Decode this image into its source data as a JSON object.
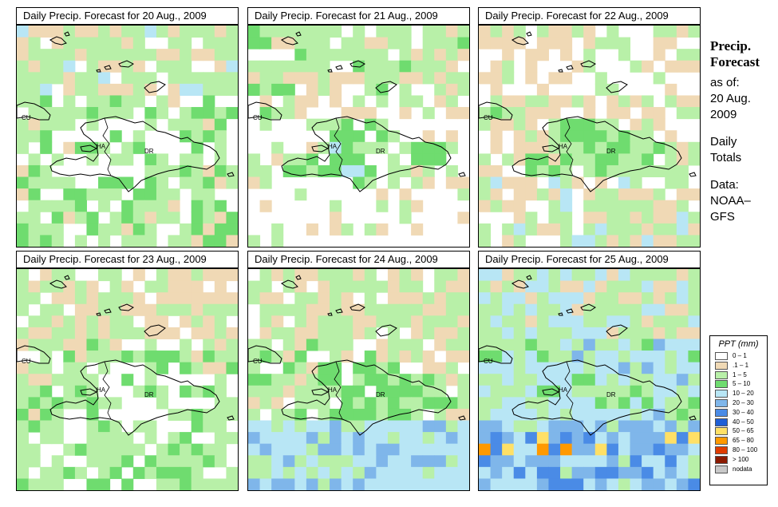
{
  "panels": [
    {
      "title": "Daily Precip. Forecast for  20 Aug., 2009",
      "seed": 11,
      "profile": "p0"
    },
    {
      "title": "Daily Precip. Forecast for  21 Aug., 2009",
      "seed": 23,
      "profile": "p1"
    },
    {
      "title": "Daily Precip. Forecast for  22 Aug., 2009",
      "seed": 37,
      "profile": "p2"
    },
    {
      "title": "Daily Precip. Forecast for  23 Aug., 2009",
      "seed": 41,
      "profile": "p3"
    },
    {
      "title": "Daily Precip. Forecast for  24 Aug., 2009",
      "seed": 53,
      "profile": "p4"
    },
    {
      "title": "Daily Precip. Forecast for  25 Aug., 2009",
      "seed": 67,
      "profile": "p5"
    }
  ],
  "map_labels": {
    "cuba": "CU",
    "haiti": "HA",
    "dominican_republic": "DR"
  },
  "side_info": {
    "title_line1": "Precip.",
    "title_line2": "Forecast",
    "asof_line1": "as of:",
    "asof_line2": "20 Aug.",
    "asof_line3": "2009",
    "totals_line1": "Daily",
    "totals_line2": "Totals",
    "data_line1": "Data:",
    "data_line2": "NOAA–",
    "data_line3": "GFS"
  },
  "legend": {
    "title": "PPT (mm)",
    "entries": [
      {
        "label": "0 – 1",
        "color": "#ffffff"
      },
      {
        "label": ".1 – 1",
        "color": "#f0d9b5"
      },
      {
        "label": "1 – 5",
        "color": "#b8f0a8"
      },
      {
        "label": "5 – 10",
        "color": "#6fdc6f"
      },
      {
        "label": "10 – 20",
        "color": "#b8e6f5"
      },
      {
        "label": "20 – 30",
        "color": "#7fb6ea"
      },
      {
        "label": "30 – 40",
        "color": "#4a8be6"
      },
      {
        "label": "40 – 50",
        "color": "#1f5fd6"
      },
      {
        "label": "50 – 65",
        "color": "#ffe066"
      },
      {
        "label": "65 – 80",
        "color": "#ff9900"
      },
      {
        "label": "80 – 100",
        "color": "#e03c00"
      },
      {
        "label": "> 100",
        "color": "#8b1a00"
      },
      {
        "label": "nodata",
        "color": "#c8c8c8"
      }
    ]
  }
}
